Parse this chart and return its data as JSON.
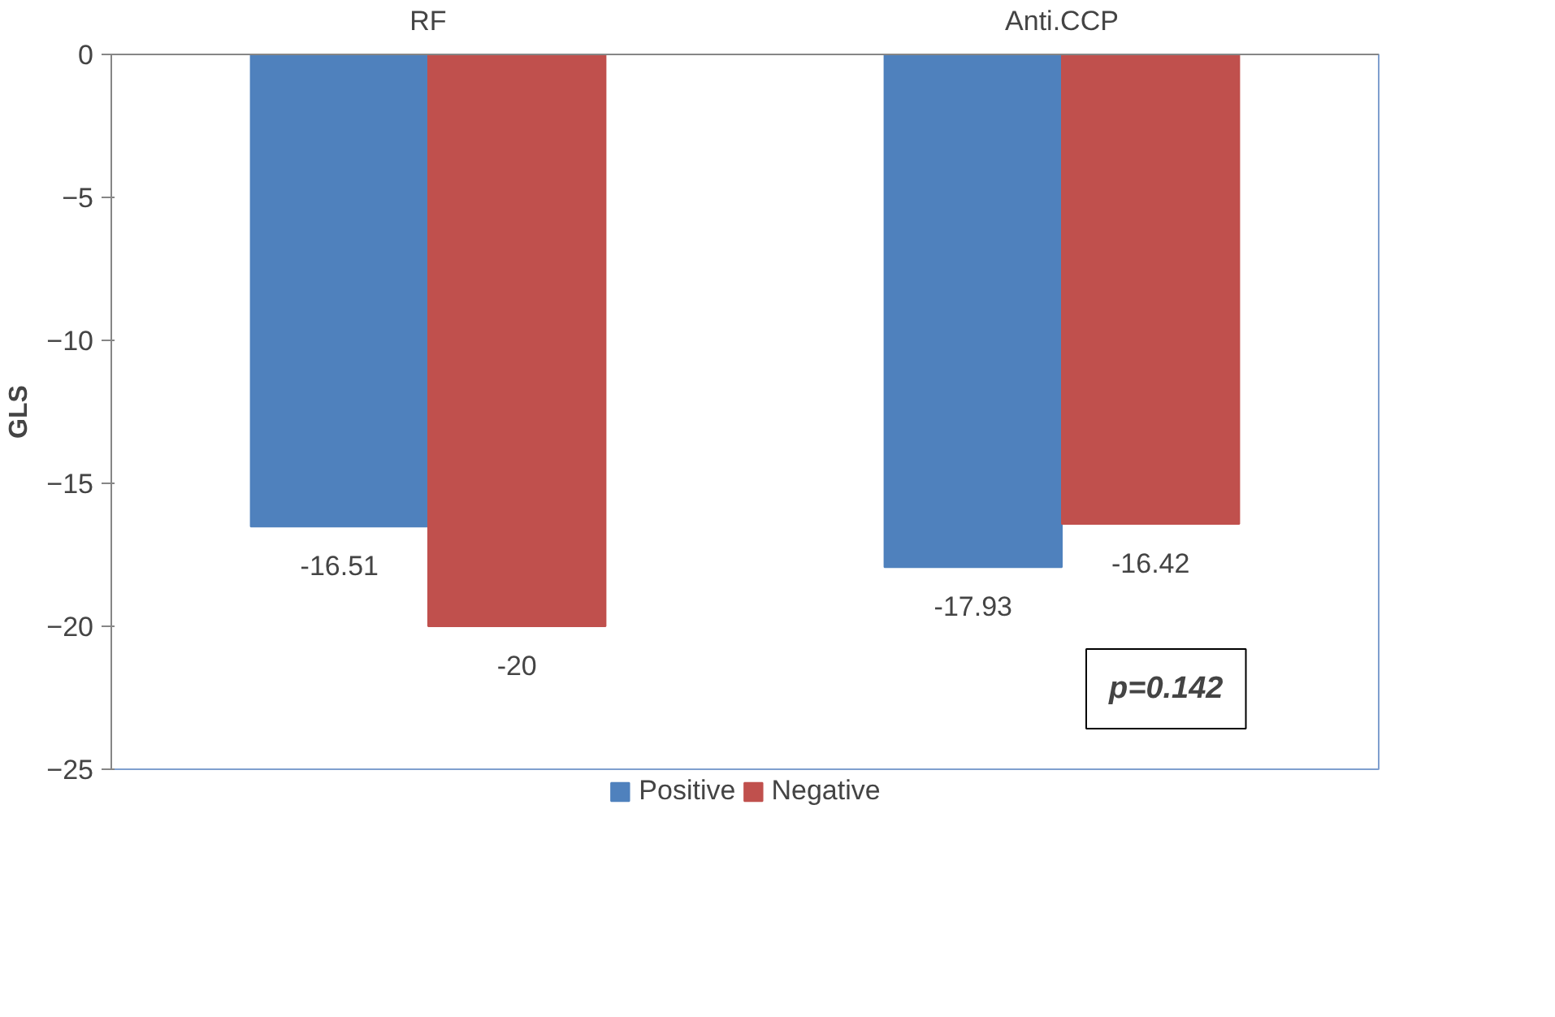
{
  "chart_data": {
    "type": "bar",
    "ylabel": "GLS",
    "categories": [
      "RF",
      "Anti.CCP"
    ],
    "series": [
      {
        "name": "Positive",
        "color": "#4f81bd",
        "values": [
          -16.51,
          -17.93
        ]
      },
      {
        "name": "Negative",
        "color": "#c0504d",
        "values": [
          -20,
          -16.42
        ]
      }
    ],
    "ylim": [
      -25,
      0
    ],
    "yticks": [
      0,
      -5,
      -10,
      -15,
      -20,
      -25
    ],
    "grid": false,
    "legend": "bottom",
    "data_labels": true,
    "annotations": [
      "p=0.142"
    ]
  }
}
